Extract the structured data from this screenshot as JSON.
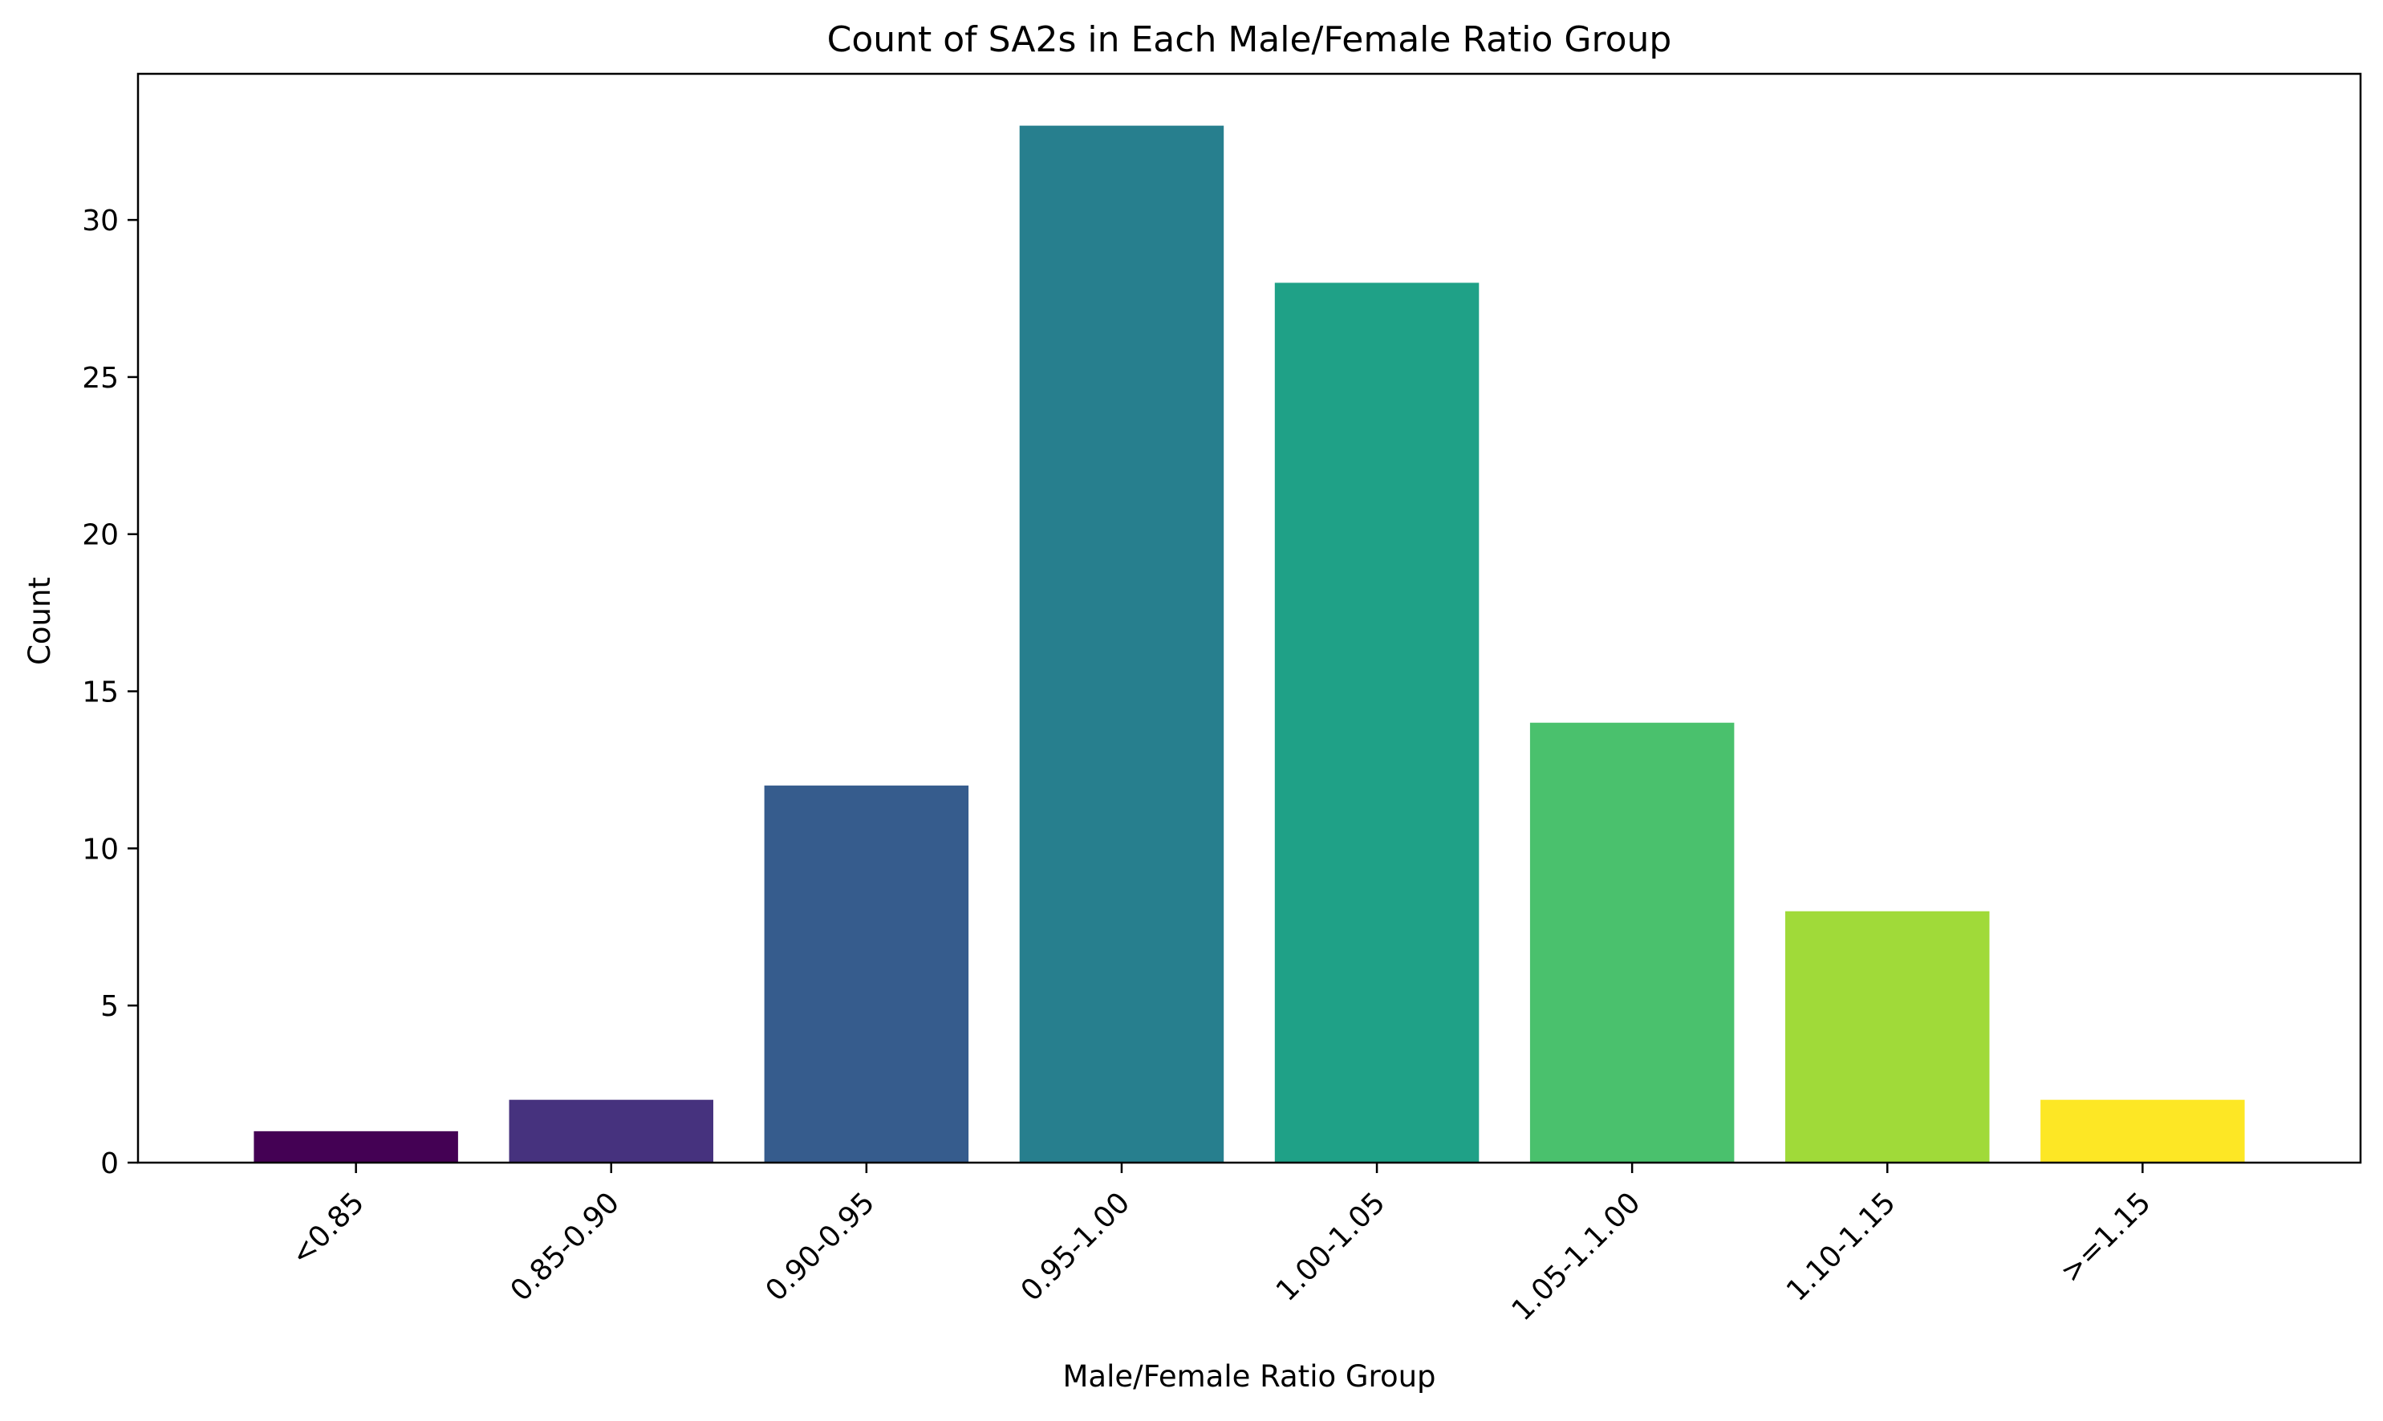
{
  "chart_data": {
    "type": "bar",
    "title": "Count of SA2s in Each Male/Female Ratio Group",
    "xlabel": "Male/Female Ratio Group",
    "ylabel": "Count",
    "categories": [
      "<0.85",
      "0.85-0.90",
      "0.90-0.95",
      "0.95-1.00",
      "1.00-1.05",
      "1.05-1.1.00",
      "1.10-1.15",
      ">=1.15"
    ],
    "values": [
      1,
      2,
      12,
      33,
      28,
      14,
      8,
      2
    ],
    "colors": [
      "#440154",
      "#46327e",
      "#365c8d",
      "#277f8e",
      "#1fa187",
      "#4ac16d",
      "#a0da39",
      "#fde725"
    ],
    "ylim": [
      0,
      34.65
    ],
    "yticks": [
      0,
      5,
      10,
      15,
      20,
      25,
      30
    ],
    "grid": false,
    "legend": "none"
  }
}
